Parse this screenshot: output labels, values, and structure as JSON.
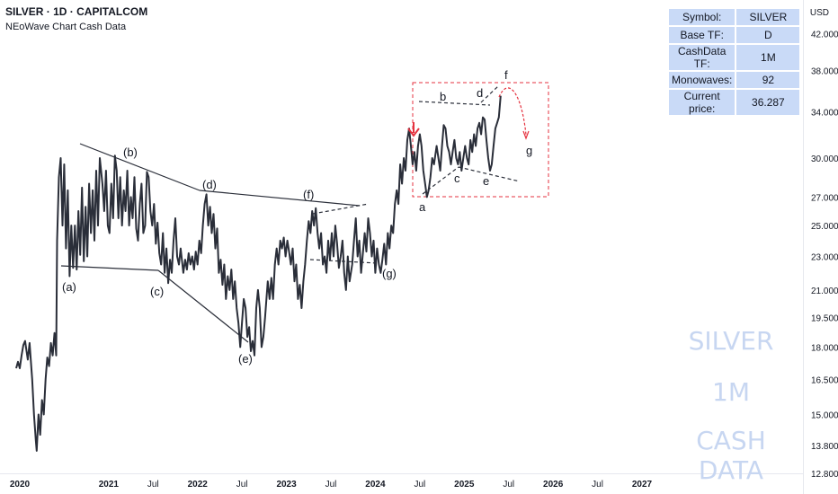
{
  "header": {
    "title": "SILVER · 1D · CAPITALCOM",
    "subtitle": "NEoWave Chart Cash Data",
    "currency": "USD"
  },
  "info_table": {
    "rows": [
      {
        "key": "Symbol:",
        "value": "SILVER"
      },
      {
        "key": "Base TF:",
        "value": "D"
      },
      {
        "key": "CashData TF:",
        "value": "1M"
      },
      {
        "key": "Monowaves:",
        "value": "92"
      },
      {
        "key": "Current price:",
        "value": "36.287"
      }
    ]
  },
  "watermark": {
    "line1": "SILVER",
    "line2": "1M",
    "line3": "CASH DATA"
  },
  "colors": {
    "price_line": "#2a2e39",
    "accent_red": "#e5323f",
    "grid": "#e6e8ee",
    "table_bg": "#c9daf7",
    "watermark": "#c7d6f1"
  },
  "chart_data": {
    "type": "line",
    "title": "SILVER · 1D · CAPITALCOM",
    "subtitle": "NEoWave Chart Cash Data",
    "y_scale": "log",
    "ylim": [
      12.1,
      46.0
    ],
    "y_ticks": [
      "42.000",
      "38.000",
      "34.000",
      "30.000",
      "27.000",
      "25.000",
      "23.000",
      "21.000",
      "19.500",
      "18.000",
      "16.500",
      "15.000",
      "13.800",
      "12.800"
    ],
    "x_ticks": [
      {
        "label": "2020",
        "t": 2020.0,
        "bold": true
      },
      {
        "label": "2021",
        "t": 2021.0,
        "bold": true
      },
      {
        "label": "Jul",
        "t": 2021.5,
        "bold": false
      },
      {
        "label": "2022",
        "t": 2022.0,
        "bold": true
      },
      {
        "label": "Jul",
        "t": 2022.5,
        "bold": false
      },
      {
        "label": "2023",
        "t": 2023.0,
        "bold": true
      },
      {
        "label": "Jul",
        "t": 2023.5,
        "bold": false
      },
      {
        "label": "2024",
        "t": 2024.0,
        "bold": true
      },
      {
        "label": "Jul",
        "t": 2024.5,
        "bold": false
      },
      {
        "label": "2025",
        "t": 2025.0,
        "bold": true
      },
      {
        "label": "Jul",
        "t": 2025.5,
        "bold": false
      },
      {
        "label": "2026",
        "t": 2026.0,
        "bold": true
      },
      {
        "label": "Jul",
        "t": 2026.5,
        "bold": false
      },
      {
        "label": "2027",
        "t": 2027.0,
        "bold": true
      }
    ],
    "series": [
      {
        "points": [
          [
            2019.96,
            17.0
          ],
          [
            2019.98,
            17.3
          ],
          [
            2020.0,
            17.0
          ],
          [
            2020.02,
            17.6
          ],
          [
            2020.04,
            18.1
          ],
          [
            2020.06,
            18.3
          ],
          [
            2020.09,
            17.4
          ],
          [
            2020.11,
            18.2
          ],
          [
            2020.13,
            17.0
          ],
          [
            2020.14,
            16.5
          ],
          [
            2020.16,
            15.0
          ],
          [
            2020.18,
            14.0
          ],
          [
            2020.19,
            13.6
          ],
          [
            2020.21,
            15.0
          ],
          [
            2020.23,
            14.2
          ],
          [
            2020.25,
            15.6
          ],
          [
            2020.27,
            15.0
          ],
          [
            2020.29,
            16.5
          ],
          [
            2020.31,
            17.5
          ],
          [
            2020.33,
            17.1
          ],
          [
            2020.35,
            18.2
          ],
          [
            2020.37,
            17.6
          ],
          [
            2020.39,
            18.7
          ],
          [
            2020.41,
            17.6
          ],
          [
            2020.42,
            24.0
          ],
          [
            2020.44,
            28.5
          ],
          [
            2020.46,
            30.0
          ],
          [
            2020.48,
            25.0
          ],
          [
            2020.5,
            29.5
          ],
          [
            2020.52,
            23.5
          ],
          [
            2020.54,
            27.5
          ],
          [
            2020.56,
            21.8
          ],
          [
            2020.58,
            25.0
          ],
          [
            2020.6,
            22.3
          ],
          [
            2020.62,
            25.0
          ],
          [
            2020.64,
            22.2
          ],
          [
            2020.66,
            26.0
          ],
          [
            2020.68,
            23.1
          ],
          [
            2020.7,
            27.7
          ],
          [
            2020.72,
            22.7
          ],
          [
            2020.74,
            26.3
          ],
          [
            2020.76,
            23.0
          ],
          [
            2020.78,
            28.0
          ],
          [
            2020.8,
            24.5
          ],
          [
            2020.82,
            27.5
          ],
          [
            2020.84,
            24.0
          ],
          [
            2020.86,
            29.0
          ],
          [
            2020.88,
            25.0
          ],
          [
            2020.9,
            30.0
          ],
          [
            2020.93,
            28.0
          ],
          [
            2020.95,
            26.0
          ],
          [
            2020.97,
            29.0
          ],
          [
            2020.99,
            25.0
          ],
          [
            2021.01,
            24.5
          ],
          [
            2021.03,
            28.0
          ],
          [
            2021.05,
            25.5
          ],
          [
            2021.07,
            30.2
          ],
          [
            2021.09,
            29.0
          ],
          [
            2021.11,
            25.5
          ],
          [
            2021.13,
            28.5
          ],
          [
            2021.15,
            25.0
          ],
          [
            2021.17,
            27.5
          ],
          [
            2021.19,
            26.0
          ],
          [
            2021.21,
            29.0
          ],
          [
            2021.23,
            25.0
          ],
          [
            2021.25,
            27.0
          ],
          [
            2021.27,
            25.5
          ],
          [
            2021.29,
            28.5
          ],
          [
            2021.31,
            24.8
          ],
          [
            2021.33,
            24.0
          ],
          [
            2021.35,
            26.5
          ],
          [
            2021.37,
            28.0
          ],
          [
            2021.39,
            24.5
          ],
          [
            2021.41,
            25.0
          ],
          [
            2021.43,
            28.9
          ],
          [
            2021.45,
            28.5
          ],
          [
            2021.47,
            26.0
          ],
          [
            2021.49,
            25.0
          ],
          [
            2021.51,
            26.5
          ],
          [
            2021.53,
            23.8
          ],
          [
            2021.55,
            25.2
          ],
          [
            2021.57,
            23.2
          ],
          [
            2021.59,
            22.5
          ],
          [
            2021.61,
            24.5
          ],
          [
            2021.63,
            22.0
          ],
          [
            2021.65,
            23.5
          ],
          [
            2021.67,
            21.4
          ],
          [
            2021.69,
            22.8
          ],
          [
            2021.71,
            22.0
          ],
          [
            2021.73,
            24.0
          ],
          [
            2021.75,
            25.5
          ],
          [
            2021.77,
            23.0
          ],
          [
            2021.79,
            22.5
          ],
          [
            2021.81,
            23.5
          ],
          [
            2021.84,
            22.0
          ],
          [
            2021.86,
            22.8
          ],
          [
            2021.88,
            22.2
          ],
          [
            2021.9,
            23.2
          ],
          [
            2021.92,
            22.5
          ],
          [
            2021.94,
            23.0
          ],
          [
            2021.96,
            22.2
          ],
          [
            2021.98,
            23.3
          ],
          [
            2022.0,
            22.5
          ],
          [
            2022.02,
            24.0
          ],
          [
            2022.04,
            23.2
          ],
          [
            2022.06,
            25.0
          ],
          [
            2022.08,
            26.5
          ],
          [
            2022.1,
            27.2
          ],
          [
            2022.12,
            25.0
          ],
          [
            2022.14,
            26.3
          ],
          [
            2022.16,
            24.5
          ],
          [
            2022.18,
            25.8
          ],
          [
            2022.2,
            23.5
          ],
          [
            2022.22,
            24.8
          ],
          [
            2022.24,
            22.0
          ],
          [
            2022.26,
            22.8
          ],
          [
            2022.28,
            21.3
          ],
          [
            2022.3,
            22.5
          ],
          [
            2022.32,
            20.5
          ],
          [
            2022.34,
            21.8
          ],
          [
            2022.36,
            21.0
          ],
          [
            2022.38,
            22.2
          ],
          [
            2022.4,
            20.5
          ],
          [
            2022.42,
            21.5
          ],
          [
            2022.44,
            20.0
          ],
          [
            2022.46,
            19.2
          ],
          [
            2022.48,
            18.0
          ],
          [
            2022.5,
            19.2
          ],
          [
            2022.52,
            20.5
          ],
          [
            2022.54,
            20.0
          ],
          [
            2022.56,
            18.5
          ],
          [
            2022.58,
            19.0
          ],
          [
            2022.6,
            17.8
          ],
          [
            2022.62,
            18.3
          ],
          [
            2022.64,
            17.6
          ],
          [
            2022.66,
            20.0
          ],
          [
            2022.68,
            21.0
          ],
          [
            2022.7,
            20.0
          ],
          [
            2022.72,
            18.0
          ],
          [
            2022.74,
            18.5
          ],
          [
            2022.76,
            19.5
          ],
          [
            2022.79,
            21.5
          ],
          [
            2022.81,
            20.5
          ],
          [
            2022.83,
            21.7
          ],
          [
            2022.85,
            20.5
          ],
          [
            2022.87,
            22.5
          ],
          [
            2022.89,
            23.5
          ],
          [
            2022.91,
            22.5
          ],
          [
            2022.93,
            24.0
          ],
          [
            2022.95,
            23.5
          ],
          [
            2022.97,
            24.2
          ],
          [
            2022.99,
            23.0
          ],
          [
            2023.01,
            24.0
          ],
          [
            2023.03,
            23.3
          ],
          [
            2023.05,
            22.5
          ],
          [
            2023.07,
            23.5
          ],
          [
            2023.09,
            21.5
          ],
          [
            2023.11,
            22.5
          ],
          [
            2023.13,
            20.5
          ],
          [
            2023.15,
            21.3
          ],
          [
            2023.17,
            20.0
          ],
          [
            2023.19,
            21.5
          ],
          [
            2023.21,
            22.5
          ],
          [
            2023.23,
            24.0
          ],
          [
            2023.25,
            25.3
          ],
          [
            2023.27,
            24.5
          ],
          [
            2023.29,
            26.0
          ],
          [
            2023.31,
            25.0
          ],
          [
            2023.33,
            26.2
          ],
          [
            2023.35,
            24.5
          ],
          [
            2023.37,
            23.5
          ],
          [
            2023.39,
            24.5
          ],
          [
            2023.41,
            22.5
          ],
          [
            2023.43,
            23.0
          ],
          [
            2023.45,
            22.0
          ],
          [
            2023.47,
            24.0
          ],
          [
            2023.49,
            22.8
          ],
          [
            2023.51,
            24.5
          ],
          [
            2023.53,
            23.0
          ],
          [
            2023.55,
            25.0
          ],
          [
            2023.57,
            23.8
          ],
          [
            2023.59,
            22.3
          ],
          [
            2023.61,
            23.0
          ],
          [
            2023.63,
            24.0
          ],
          [
            2023.65,
            22.0
          ],
          [
            2023.67,
            21.0
          ],
          [
            2023.69,
            23.0
          ],
          [
            2023.71,
            21.5
          ],
          [
            2023.74,
            22.5
          ],
          [
            2023.76,
            24.0
          ],
          [
            2023.78,
            25.5
          ],
          [
            2023.8,
            23.0
          ],
          [
            2023.82,
            24.0
          ],
          [
            2023.84,
            22.0
          ],
          [
            2023.86,
            23.2
          ],
          [
            2023.88,
            24.5
          ],
          [
            2023.9,
            23.3
          ],
          [
            2023.92,
            25.5
          ],
          [
            2023.94,
            24.5
          ],
          [
            2023.96,
            23.0
          ],
          [
            2023.98,
            24.0
          ],
          [
            2024.0,
            22.0
          ],
          [
            2024.02,
            23.5
          ],
          [
            2024.04,
            22.5
          ],
          [
            2024.06,
            22.0
          ],
          [
            2024.08,
            22.8
          ],
          [
            2024.1,
            23.8
          ],
          [
            2024.12,
            22.5
          ],
          [
            2024.14,
            24.5
          ],
          [
            2024.16,
            23.5
          ],
          [
            2024.18,
            25.0
          ],
          [
            2024.2,
            24.5
          ],
          [
            2024.22,
            26.5
          ],
          [
            2024.24,
            27.5
          ],
          [
            2024.26,
            26.5
          ],
          [
            2024.28,
            29.5
          ],
          [
            2024.3,
            28.0
          ],
          [
            2024.32,
            30.0
          ],
          [
            2024.34,
            29.0
          ],
          [
            2024.36,
            31.5
          ],
          [
            2024.38,
            32.5
          ],
          [
            2024.4,
            31.0
          ],
          [
            2024.42,
            29.5
          ],
          [
            2024.44,
            30.5
          ],
          [
            2024.46,
            29.0
          ],
          [
            2024.48,
            31.0
          ],
          [
            2024.5,
            32.0
          ],
          [
            2024.52,
            31.0
          ],
          [
            2024.54,
            29.0
          ],
          [
            2024.56,
            28.0
          ],
          [
            2024.58,
            27.0
          ],
          [
            2024.6,
            27.5
          ],
          [
            2024.62,
            28.5
          ],
          [
            2024.64,
            30.0
          ],
          [
            2024.66,
            29.5
          ],
          [
            2024.69,
            31.0
          ],
          [
            2024.71,
            30.0
          ],
          [
            2024.73,
            29.0
          ],
          [
            2024.75,
            31.0
          ],
          [
            2024.77,
            32.8
          ],
          [
            2024.79,
            32.5
          ],
          [
            2024.81,
            31.0
          ],
          [
            2024.83,
            30.5
          ],
          [
            2024.85,
            29.5
          ],
          [
            2024.87,
            30.5
          ],
          [
            2024.89,
            31.5
          ],
          [
            2024.91,
            30.0
          ],
          [
            2024.93,
            29.5
          ],
          [
            2024.95,
            30.5
          ],
          [
            2024.97,
            29.0
          ],
          [
            2024.99,
            30.0
          ],
          [
            2025.01,
            31.0
          ],
          [
            2025.03,
            30.0
          ],
          [
            2025.05,
            29.5
          ],
          [
            2025.07,
            31.5
          ],
          [
            2025.09,
            30.5
          ],
          [
            2025.11,
            32.0
          ],
          [
            2025.13,
            31.0
          ],
          [
            2025.15,
            32.5
          ],
          [
            2025.17,
            33.0
          ],
          [
            2025.19,
            32.0
          ],
          [
            2025.21,
            33.5
          ],
          [
            2025.23,
            33.3
          ],
          [
            2025.25,
            31.5
          ],
          [
            2025.27,
            30.0
          ],
          [
            2025.29,
            29.0
          ],
          [
            2025.31,
            29.5
          ],
          [
            2025.33,
            31.0
          ],
          [
            2025.35,
            32.5
          ],
          [
            2025.37,
            33.0
          ],
          [
            2025.39,
            33.5
          ],
          [
            2025.41,
            35.5
          ]
        ]
      }
    ],
    "annotations": {
      "waves": [
        "(a)",
        "(b)",
        "(c)",
        "(d)",
        "(e)",
        "(f)",
        "(g)",
        "a",
        "b",
        "c",
        "d",
        "e",
        "f",
        "g"
      ]
    }
  }
}
